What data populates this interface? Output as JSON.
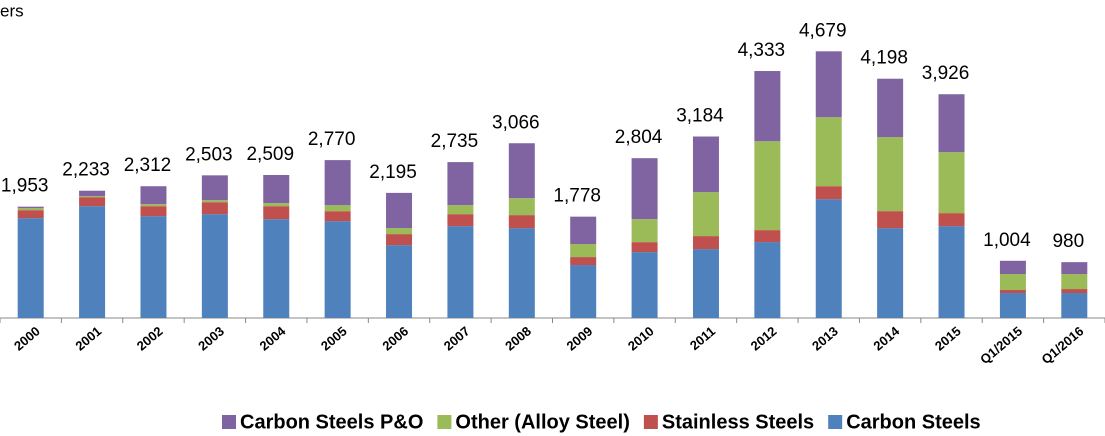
{
  "chart_data": {
    "type": "stacked_bar",
    "subtitle": "ers",
    "categories": [
      "2000",
      "2001",
      "2002",
      "2003",
      "2004",
      "2005",
      "2006",
      "2007",
      "2008",
      "2009",
      "2010",
      "2011",
      "2012",
      "2013",
      "2014",
      "2015",
      "Q1/2015",
      "Q1/2016"
    ],
    "series": [
      {
        "name": "Carbon Steels",
        "color": "#4f81bd",
        "values": [
          1752,
          1962,
          1787,
          1822,
          1734,
          1699,
          1279,
          1612,
          1577,
          929,
          1156,
          1209,
          1332,
          2085,
          1577,
          1612,
          438,
          438
        ]
      },
      {
        "name": "Stainless Steels",
        "color": "#c0504d",
        "values": [
          140,
          158,
          175,
          210,
          228,
          175,
          193,
          210,
          228,
          140,
          175,
          228,
          210,
          228,
          298,
          228,
          53,
          70
        ]
      },
      {
        "name": "Other (Alloy Steel)",
        "color": "#9bbb59",
        "values": [
          35,
          18,
          35,
          35,
          53,
          105,
          105,
          158,
          298,
          228,
          403,
          771,
          1559,
          1209,
          1297,
          1069,
          280,
          263
        ]
      },
      {
        "name": "Carbon Steels P&O",
        "color": "#8064a2",
        "values": [
          26,
          95,
          315,
          436,
          494,
          791,
          618,
          755,
          963,
          481,
          1070,
          976,
          1232,
          1157,
          1026,
          1017,
          233,
          209
        ]
      }
    ],
    "totals": [
      1953,
      2233,
      2312,
      2503,
      2509,
      2770,
      2195,
      2735,
      3066,
      1778,
      2804,
      3184,
      4333,
      4679,
      4198,
      3926,
      1004,
      980
    ],
    "total_labels": [
      "1,953",
      "2,233",
      "2,312",
      "2,503",
      "2,509",
      "2,770",
      "2,195",
      "2,735",
      "3,066",
      "1,778",
      "2,804",
      "3,184",
      "4,333",
      "4,679",
      "4,198",
      "3,926",
      "1,004",
      "980"
    ],
    "ylim": [
      0,
      5000
    ]
  }
}
